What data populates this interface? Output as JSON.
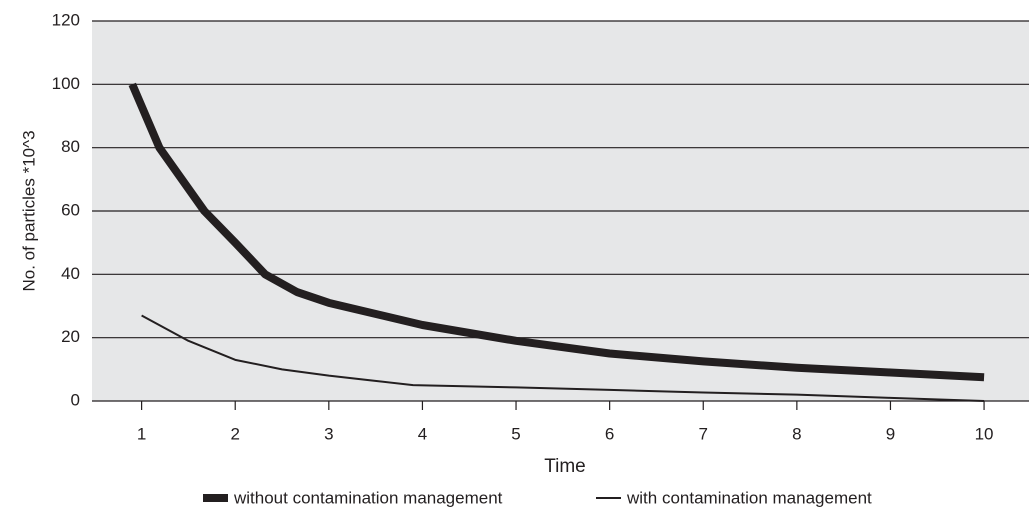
{
  "chart_data": {
    "type": "line",
    "xlabel": "Time",
    "ylabel": "No. of particles *10^3",
    "xlim": [
      0.47,
      10.48
    ],
    "xticks": [
      1,
      2,
      3,
      4,
      5,
      6,
      7,
      8,
      9,
      10
    ],
    "ylim": [
      0,
      120
    ],
    "yticks": [
      0,
      20,
      40,
      60,
      80,
      100,
      120
    ],
    "grid": true,
    "background": "#e6e7e8",
    "legend": "bottom",
    "series": [
      {
        "name": "without contamination management",
        "color": "#231f20",
        "line_width": 8,
        "x": [
          0.9,
          1.19,
          1.67,
          2.0,
          2.32,
          2.66,
          3,
          4,
          5,
          6,
          7,
          8,
          9,
          10
        ],
        "values": [
          100,
          80,
          60,
          50,
          40,
          34.4,
          31,
          24,
          19,
          15,
          12.5,
          10.5,
          9,
          7.5
        ]
      },
      {
        "name": "with contamination management",
        "color": "#231f20",
        "line_width": 2,
        "x": [
          1,
          1.5,
          2,
          2.5,
          3,
          3.9,
          5,
          6,
          7,
          8,
          9,
          10
        ],
        "values": [
          27,
          19,
          13,
          10,
          8,
          5,
          4.3,
          3.5,
          2.7,
          2,
          1,
          0
        ]
      }
    ]
  }
}
